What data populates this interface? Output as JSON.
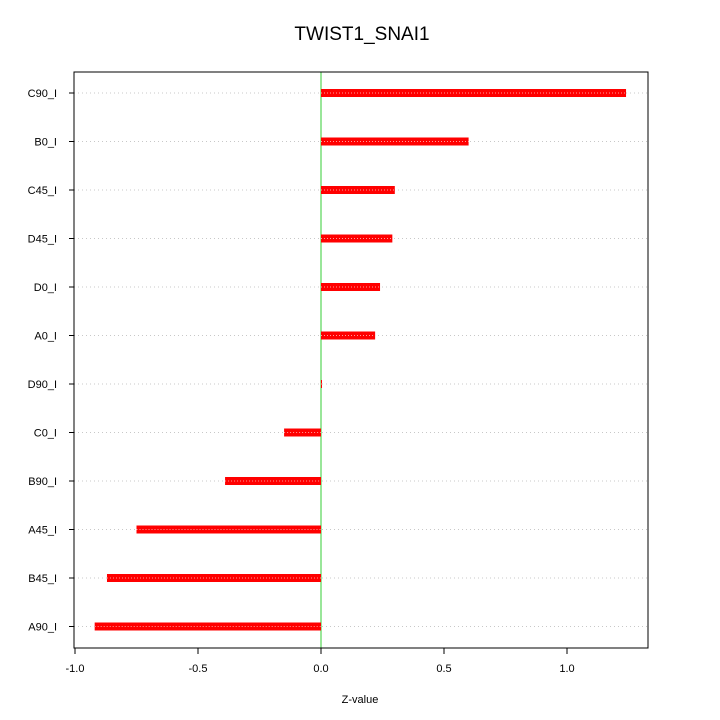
{
  "chart_data": {
    "type": "bar",
    "orientation": "horizontal",
    "title": "TWIST1_SNAI1",
    "xlabel": "Z-value",
    "ylabel": "",
    "xlim": [
      -1.0,
      1.3
    ],
    "xticks": [
      -1.0,
      -0.5,
      0.0,
      0.5,
      1.0
    ],
    "xtick_labels": [
      "-1.0",
      "-0.5",
      "0.0",
      "0.5",
      "1.0"
    ],
    "categories": [
      "C90_I",
      "B0_I",
      "C45_I",
      "D45_I",
      "D0_I",
      "A0_I",
      "D90_I",
      "C0_I",
      "B90_I",
      "A45_I",
      "B45_I",
      "A90_I"
    ],
    "values": [
      1.24,
      0.6,
      0.3,
      0.29,
      0.24,
      0.22,
      0.0,
      -0.15,
      -0.39,
      -0.75,
      -0.87,
      -0.92
    ],
    "grid": "horizontal-dotted",
    "reference_line": 0.0,
    "colors": {
      "bar": "#ff0000",
      "reference_line": "#33cc33",
      "grid": "#c8c8c8",
      "axis": "#000000"
    }
  }
}
